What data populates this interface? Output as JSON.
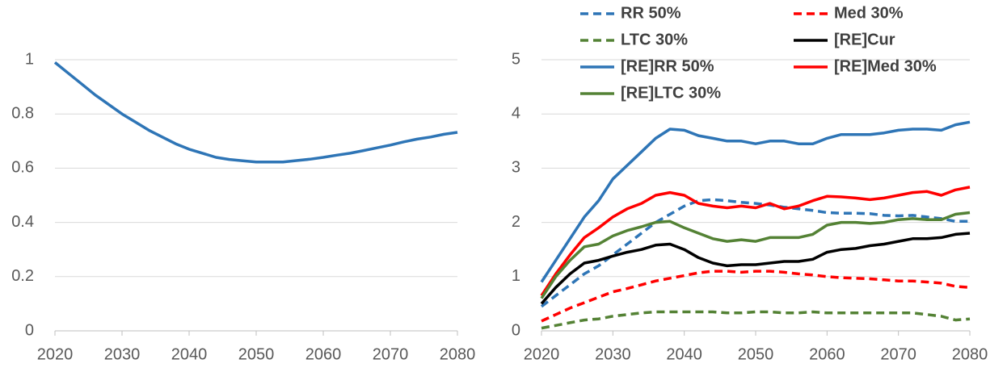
{
  "chart_data": [
    {
      "type": "line",
      "x": [
        2020,
        2022,
        2024,
        2026,
        2028,
        2030,
        2032,
        2034,
        2036,
        2038,
        2040,
        2042,
        2044,
        2046,
        2048,
        2050,
        2052,
        2054,
        2056,
        2058,
        2060,
        2062,
        2064,
        2066,
        2068,
        2070,
        2072,
        2074,
        2076,
        2078,
        2080
      ],
      "xlim": [
        2020,
        2080
      ],
      "xticks": [
        2020,
        2030,
        2040,
        2050,
        2060,
        2070,
        2080
      ],
      "ylim": [
        0,
        1
      ],
      "yticks": [
        0,
        {
          "value": 0.2,
          "label": "0.2"
        },
        {
          "value": 0.4,
          "label": "0.4"
        },
        {
          "value": 0.6,
          "label": "0.6"
        },
        {
          "value": 0.8,
          "label": "0.8"
        },
        1
      ],
      "grid": true,
      "series": [
        {
          "color": "#2e75b6",
          "values": [
            0.99,
            0.95,
            0.91,
            0.87,
            0.835,
            0.8,
            0.77,
            0.74,
            0.715,
            0.69,
            0.67,
            0.655,
            0.64,
            0.632,
            0.627,
            0.623,
            0.623,
            0.623,
            0.628,
            0.633,
            0.64,
            0.648,
            0.655,
            0.665,
            0.675,
            0.685,
            0.697,
            0.707,
            0.715,
            0.725,
            0.732
          ]
        }
      ]
    },
    {
      "type": "line",
      "x": [
        2020,
        2022,
        2024,
        2026,
        2028,
        2030,
        2032,
        2034,
        2036,
        2038,
        2040,
        2042,
        2044,
        2046,
        2048,
        2050,
        2052,
        2054,
        2056,
        2058,
        2060,
        2062,
        2064,
        2066,
        2068,
        2070,
        2072,
        2074,
        2076,
        2078,
        2080
      ],
      "xlim": [
        2020,
        2080
      ],
      "xticks": [
        2020,
        2030,
        2040,
        2050,
        2060,
        2070,
        2080
      ],
      "ylim": [
        0,
        5
      ],
      "yticks": [
        0,
        1,
        2,
        3,
        4,
        5
      ],
      "grid": true,
      "legend": "top",
      "series": [
        {
          "name": "RR 50%",
          "color": "#2e75b6",
          "dashed": true,
          "values": [
            0.45,
            0.65,
            0.85,
            1.05,
            1.2,
            1.4,
            1.6,
            1.8,
            2.0,
            2.15,
            2.3,
            2.4,
            2.42,
            2.4,
            2.37,
            2.35,
            2.32,
            2.28,
            2.25,
            2.22,
            2.18,
            2.17,
            2.17,
            2.16,
            2.13,
            2.12,
            2.13,
            2.1,
            2.07,
            2.02,
            2.02
          ]
        },
        {
          "name": "Med 30%",
          "color": "#ff0000",
          "dashed": true,
          "values": [
            0.18,
            0.3,
            0.42,
            0.52,
            0.62,
            0.72,
            0.78,
            0.85,
            0.92,
            0.97,
            1.02,
            1.07,
            1.1,
            1.1,
            1.08,
            1.1,
            1.1,
            1.08,
            1.05,
            1.03,
            1.0,
            0.98,
            0.97,
            0.96,
            0.94,
            0.92,
            0.92,
            0.9,
            0.88,
            0.82,
            0.8
          ]
        },
        {
          "name": "LTC 30%",
          "color": "#548235",
          "dashed": true,
          "values": [
            0.05,
            0.1,
            0.15,
            0.2,
            0.22,
            0.27,
            0.3,
            0.33,
            0.35,
            0.35,
            0.35,
            0.35,
            0.35,
            0.33,
            0.33,
            0.35,
            0.35,
            0.33,
            0.33,
            0.35,
            0.33,
            0.33,
            0.33,
            0.33,
            0.33,
            0.33,
            0.33,
            0.3,
            0.27,
            0.2,
            0.22
          ]
        },
        {
          "name": "[RE]Cur",
          "color": "#000000",
          "dashed": false,
          "values": [
            0.5,
            0.8,
            1.05,
            1.25,
            1.3,
            1.38,
            1.45,
            1.5,
            1.58,
            1.6,
            1.5,
            1.35,
            1.25,
            1.2,
            1.22,
            1.22,
            1.25,
            1.28,
            1.28,
            1.32,
            1.45,
            1.5,
            1.52,
            1.57,
            1.6,
            1.65,
            1.7,
            1.7,
            1.72,
            1.78,
            1.8
          ]
        },
        {
          "name": "[RE]RR 50%",
          "color": "#2e75b6",
          "dashed": false,
          "values": [
            0.9,
            1.3,
            1.7,
            2.1,
            2.4,
            2.8,
            3.05,
            3.3,
            3.55,
            3.72,
            3.7,
            3.6,
            3.55,
            3.5,
            3.5,
            3.45,
            3.5,
            3.5,
            3.45,
            3.45,
            3.55,
            3.62,
            3.62,
            3.62,
            3.65,
            3.7,
            3.72,
            3.72,
            3.7,
            3.8,
            3.85
          ]
        },
        {
          "name": "[RE]Med 30%",
          "color": "#ff0000",
          "dashed": false,
          "values": [
            0.65,
            1.05,
            1.4,
            1.72,
            1.9,
            2.1,
            2.25,
            2.35,
            2.5,
            2.55,
            2.5,
            2.35,
            2.3,
            2.27,
            2.3,
            2.27,
            2.35,
            2.25,
            2.3,
            2.4,
            2.48,
            2.47,
            2.45,
            2.42,
            2.45,
            2.5,
            2.55,
            2.57,
            2.5,
            2.6,
            2.65
          ]
        },
        {
          "name": "[RE]LTC 30%",
          "color": "#548235",
          "dashed": false,
          "values": [
            0.6,
            1.0,
            1.3,
            1.55,
            1.6,
            1.75,
            1.85,
            1.92,
            2.0,
            2.02,
            1.9,
            1.8,
            1.7,
            1.65,
            1.68,
            1.65,
            1.72,
            1.72,
            1.72,
            1.78,
            1.95,
            2.0,
            2.0,
            1.98,
            2.0,
            2.05,
            2.07,
            2.05,
            2.05,
            2.15,
            2.18
          ]
        }
      ]
    }
  ]
}
